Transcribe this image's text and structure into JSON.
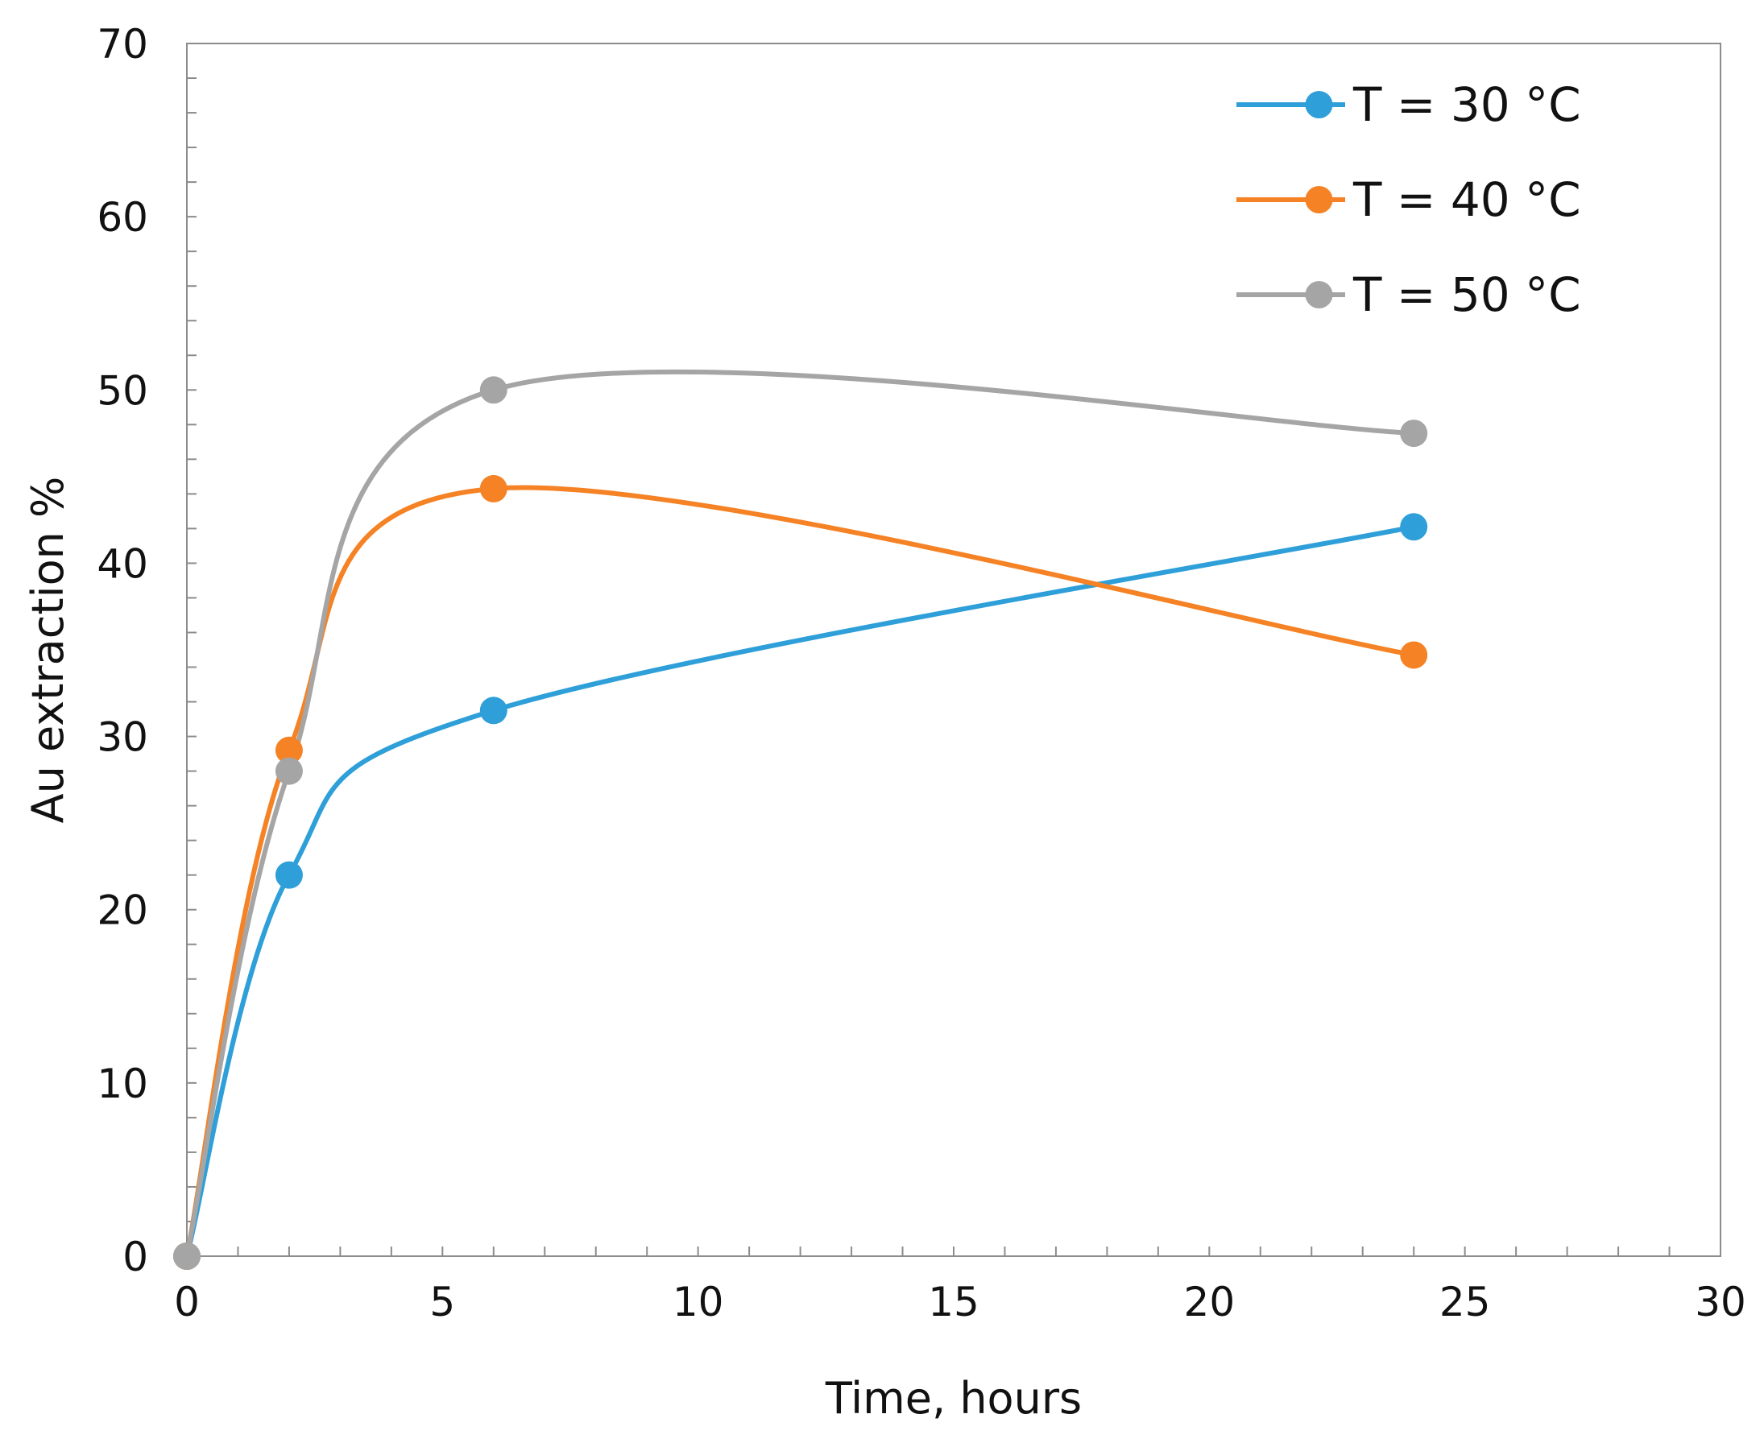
{
  "chart_data": {
    "type": "line",
    "title": "",
    "xlabel": "Time, hours",
    "ylabel": "Au extraction %",
    "xlim": [
      0,
      30
    ],
    "ylim": [
      0,
      70
    ],
    "x_ticks": [
      0,
      5,
      10,
      15,
      20,
      25,
      30
    ],
    "y_ticks": [
      0,
      10,
      20,
      30,
      40,
      50,
      60,
      70
    ],
    "x_minor_step": 1,
    "y_minor_step": 2,
    "grid": false,
    "smooth": true,
    "legend_position": "top-right",
    "series": [
      {
        "name": "T = 30 °C",
        "color": "#2E9FD8",
        "x": [
          0,
          2,
          6,
          24
        ],
        "y": [
          0,
          22.0,
          31.5,
          42.1
        ]
      },
      {
        "name": "T = 40 °C",
        "color": "#F58225",
        "x": [
          0,
          2,
          6,
          24
        ],
        "y": [
          0,
          29.2,
          44.3,
          34.7
        ]
      },
      {
        "name": "T = 50 °C",
        "color": "#A5A5A5",
        "x": [
          0,
          2,
          6,
          24
        ],
        "y": [
          0,
          28.0,
          50.0,
          47.5
        ]
      }
    ]
  }
}
